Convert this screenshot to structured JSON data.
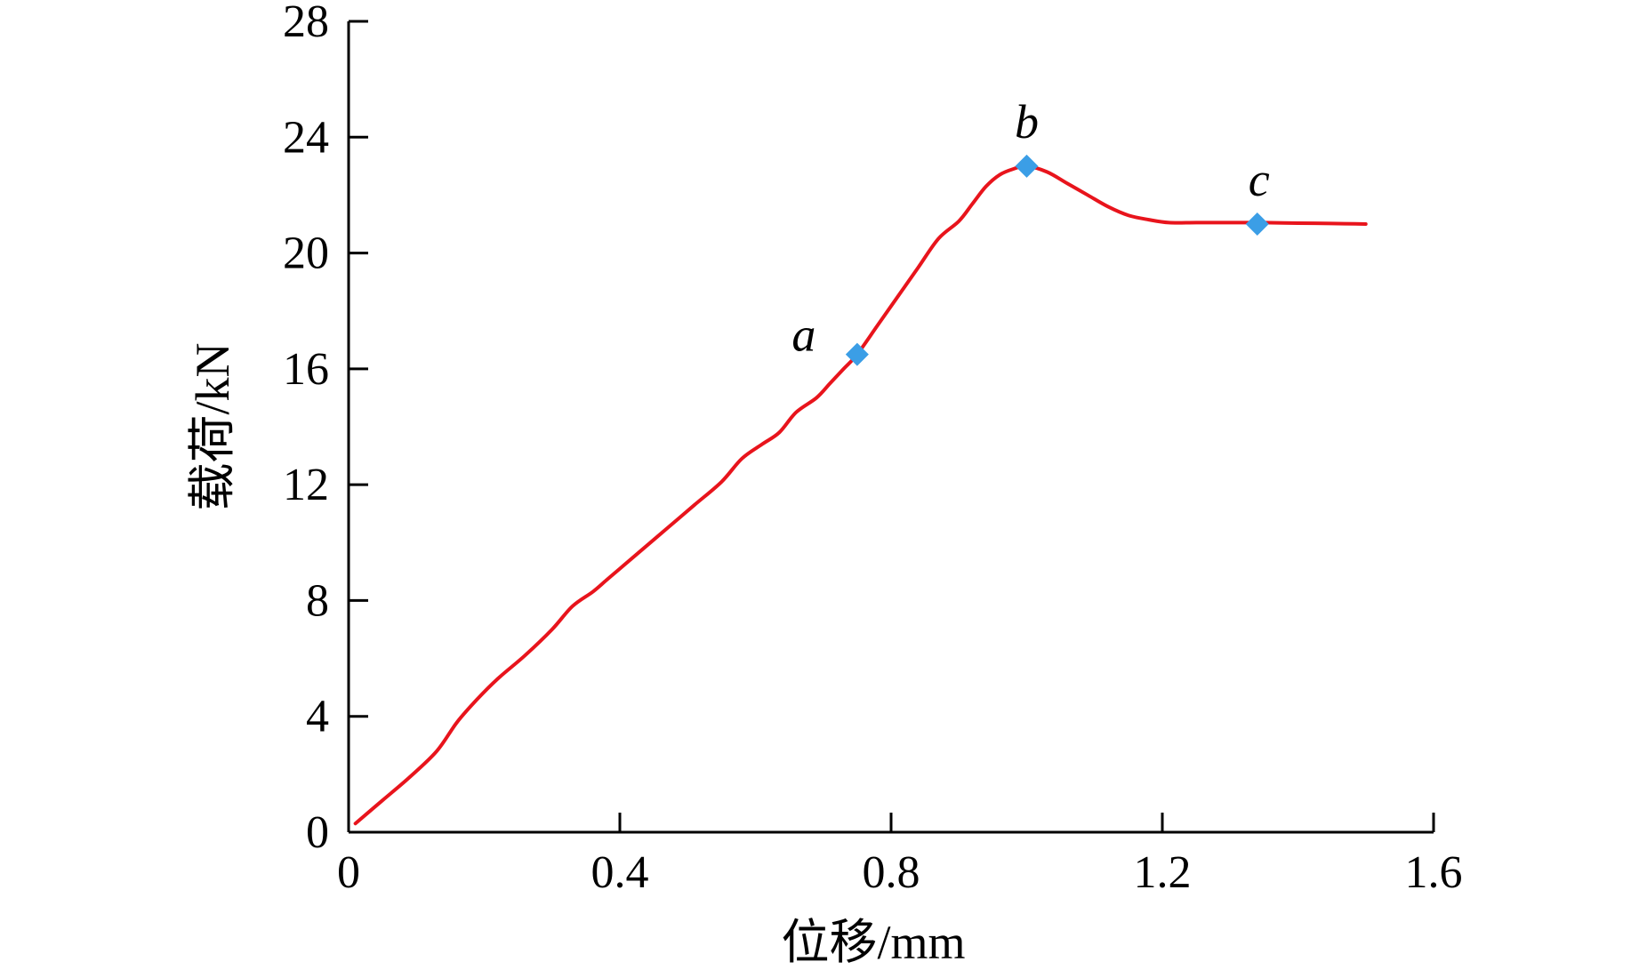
{
  "chart_data": {
    "type": "line",
    "title": "",
    "xlabel": "位移/mm",
    "ylabel": "载荷/kN",
    "xlim": [
      0,
      1.6
    ],
    "ylim": [
      0,
      28
    ],
    "xticks": [
      0,
      0.4,
      0.8,
      1.2,
      1.6
    ],
    "yticks": [
      0,
      4,
      8,
      12,
      16,
      20,
      24,
      28
    ],
    "xtick_labels": [
      "0",
      "0.4",
      "0.8",
      "1.2",
      "1.6"
    ],
    "ytick_labels": [
      "0",
      "4",
      "8",
      "12",
      "16",
      "20",
      "24",
      "28"
    ],
    "grid": false,
    "legend": "none",
    "series": [
      {
        "color": "#e8141c",
        "x": [
          0.01,
          0.05,
          0.09,
          0.13,
          0.16,
          0.19,
          0.22,
          0.26,
          0.3,
          0.33,
          0.36,
          0.38,
          0.4,
          0.43,
          0.47,
          0.51,
          0.55,
          0.58,
          0.61,
          0.635,
          0.66,
          0.69,
          0.71,
          0.73,
          0.75,
          0.78,
          0.81,
          0.84,
          0.87,
          0.9,
          0.92,
          0.94,
          0.96,
          0.98,
          1.0,
          1.03,
          1.06,
          1.09,
          1.12,
          1.15,
          1.18,
          1.21,
          1.25,
          1.3,
          1.35,
          1.4,
          1.45,
          1.5
        ],
        "y": [
          0.3,
          1.1,
          1.9,
          2.8,
          3.8,
          4.6,
          5.3,
          6.1,
          7.0,
          7.8,
          8.3,
          8.7,
          9.1,
          9.7,
          10.5,
          11.3,
          12.1,
          12.9,
          13.4,
          13.8,
          14.5,
          15.0,
          15.5,
          16.0,
          16.5,
          17.5,
          18.5,
          19.5,
          20.5,
          21.1,
          21.7,
          22.3,
          22.7,
          22.9,
          23.0,
          22.8,
          22.4,
          22.0,
          21.6,
          21.3,
          21.15,
          21.05,
          21.05,
          21.05,
          21.05,
          21.03,
          21.02,
          21.0
        ]
      }
    ],
    "markers": {
      "color": "#3b9ee6",
      "points": [
        {
          "label": "a",
          "x": 0.75,
          "y": 16.5
        },
        {
          "label": "b",
          "x": 1.0,
          "y": 23.0
        },
        {
          "label": "c",
          "x": 1.34,
          "y": 21.0
        }
      ]
    }
  }
}
